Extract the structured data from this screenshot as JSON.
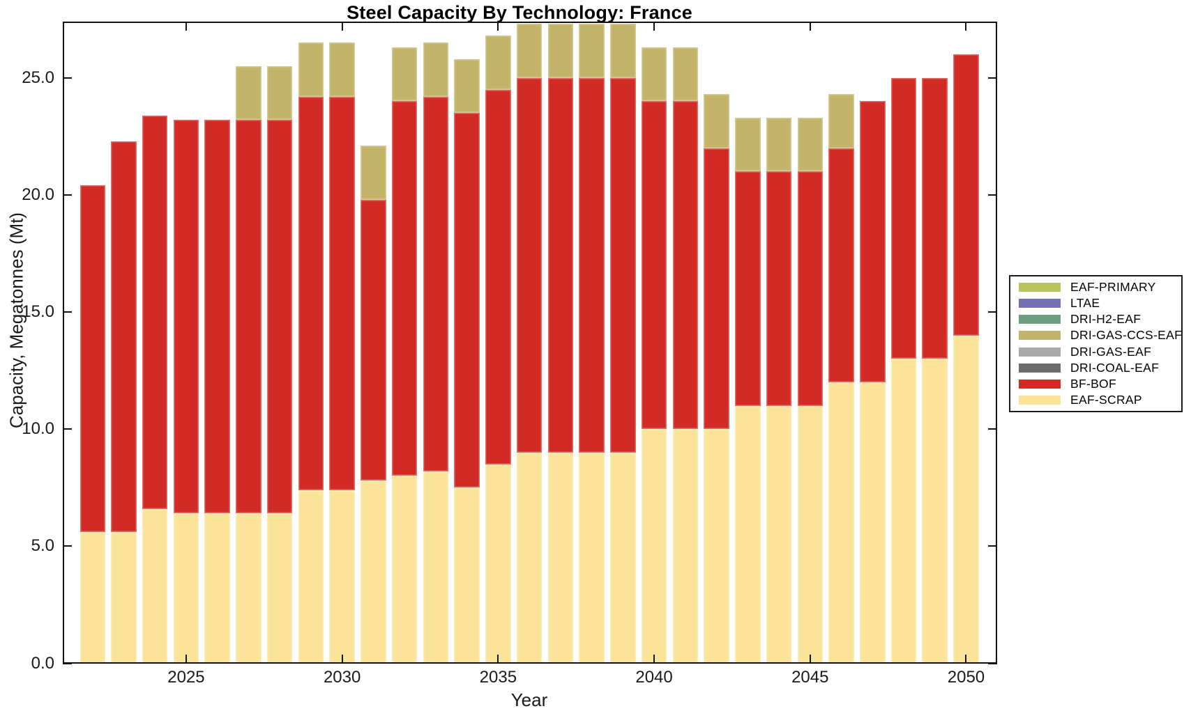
{
  "chart_data": {
    "type": "bar",
    "stacked": true,
    "title": "Steel Capacity By Technology: France",
    "xlabel": "Year",
    "ylabel": "Capacity, Megatonnes (Mt)",
    "grid": false,
    "legend_position": "right-outside",
    "ylim": [
      0,
      27.4
    ],
    "yticks": {
      "values": [
        0,
        5,
        10,
        15,
        20,
        25
      ],
      "labels": [
        "0.0",
        "5.0",
        "10.0",
        "15.0",
        "20.0",
        "25.0"
      ]
    },
    "xticks": {
      "values": [
        2025,
        2030,
        2035,
        2040,
        2045,
        2050
      ],
      "labels": [
        "2025",
        "2030",
        "2035",
        "2040",
        "2045",
        "2050"
      ]
    },
    "years": [
      2022,
      2023,
      2024,
      2025,
      2026,
      2027,
      2028,
      2029,
      2030,
      2031,
      2032,
      2033,
      2034,
      2035,
      2036,
      2037,
      2038,
      2039,
      2040,
      2041,
      2042,
      2043,
      2044,
      2045,
      2046,
      2047,
      2048,
      2049,
      2050
    ],
    "series": [
      {
        "name": "EAF-SCRAP",
        "color": "#fbe39a",
        "values": [
          5.6,
          5.6,
          6.6,
          6.4,
          6.4,
          6.4,
          6.4,
          7.4,
          7.4,
          7.8,
          8.0,
          8.2,
          7.5,
          8.5,
          9.0,
          9.0,
          9.0,
          9.0,
          10.0,
          10.0,
          10.0,
          11.0,
          11.0,
          11.0,
          12.0,
          12.0,
          13.0,
          13.0,
          14.0
        ]
      },
      {
        "name": "BF-BOF",
        "color": "#d22b25",
        "values": [
          14.8,
          16.7,
          16.8,
          16.8,
          16.8,
          16.8,
          16.8,
          16.8,
          16.8,
          12.0,
          16.0,
          16.0,
          16.0,
          16.0,
          16.0,
          16.0,
          16.0,
          16.0,
          14.0,
          14.0,
          12.0,
          10.0,
          10.0,
          10.0,
          10.0,
          12.0,
          12.0,
          12.0,
          12.0
        ]
      },
      {
        "name": "DRI-COAL-EAF",
        "color": "#6c6c6c",
        "values": [
          0,
          0,
          0,
          0,
          0,
          0,
          0,
          0,
          0,
          0,
          0,
          0,
          0,
          0,
          0,
          0,
          0,
          0,
          0,
          0,
          0,
          0,
          0,
          0,
          0,
          0,
          0,
          0,
          0
        ]
      },
      {
        "name": "DRI-GAS-EAF",
        "color": "#a8a8a8",
        "values": [
          0,
          0,
          0,
          0,
          0,
          0,
          0,
          0,
          0,
          0,
          0,
          0,
          0,
          0,
          0,
          0,
          0,
          0,
          0,
          0,
          0,
          0,
          0,
          0,
          0,
          0,
          0,
          0,
          0
        ]
      },
      {
        "name": "DRI-GAS-CCS-EAF",
        "color": "#c3b46a",
        "values": [
          0,
          0,
          0,
          0,
          0,
          2.3,
          2.3,
          2.3,
          2.3,
          2.3,
          2.3,
          2.3,
          2.3,
          2.3,
          2.3,
          2.3,
          2.3,
          2.3,
          2.3,
          2.3,
          2.3,
          2.3,
          2.3,
          2.3,
          2.3,
          0,
          0,
          0,
          0
        ]
      },
      {
        "name": "DRI-H2-EAF",
        "color": "#6f9e83",
        "values": [
          0,
          0,
          0,
          0,
          0,
          0,
          0,
          0,
          0,
          0,
          0,
          0,
          0,
          0,
          0,
          0,
          0,
          0,
          0,
          0,
          0,
          0,
          0,
          0,
          0,
          0,
          0,
          0,
          0
        ]
      },
      {
        "name": "LTAE",
        "color": "#7570b3",
        "values": [
          0,
          0,
          0,
          0,
          0,
          0,
          0,
          0,
          0,
          0,
          0,
          0,
          0,
          0,
          0,
          0,
          0,
          0,
          0,
          0,
          0,
          0,
          0,
          0,
          0,
          0,
          0,
          0,
          0
        ]
      },
      {
        "name": "EAF-PRIMARY",
        "color": "#b7c55c",
        "values": [
          0,
          0,
          0,
          0,
          0,
          0,
          0,
          0,
          0,
          0,
          0,
          0,
          0,
          0,
          0,
          0,
          0,
          0,
          0,
          0,
          0,
          0,
          0,
          0,
          0,
          0,
          0,
          0,
          0
        ]
      }
    ],
    "legend_order": [
      "EAF-PRIMARY",
      "LTAE",
      "DRI-H2-EAF",
      "DRI-GAS-CCS-EAF",
      "DRI-GAS-EAF",
      "DRI-COAL-EAF",
      "BF-BOF",
      "EAF-SCRAP"
    ]
  }
}
